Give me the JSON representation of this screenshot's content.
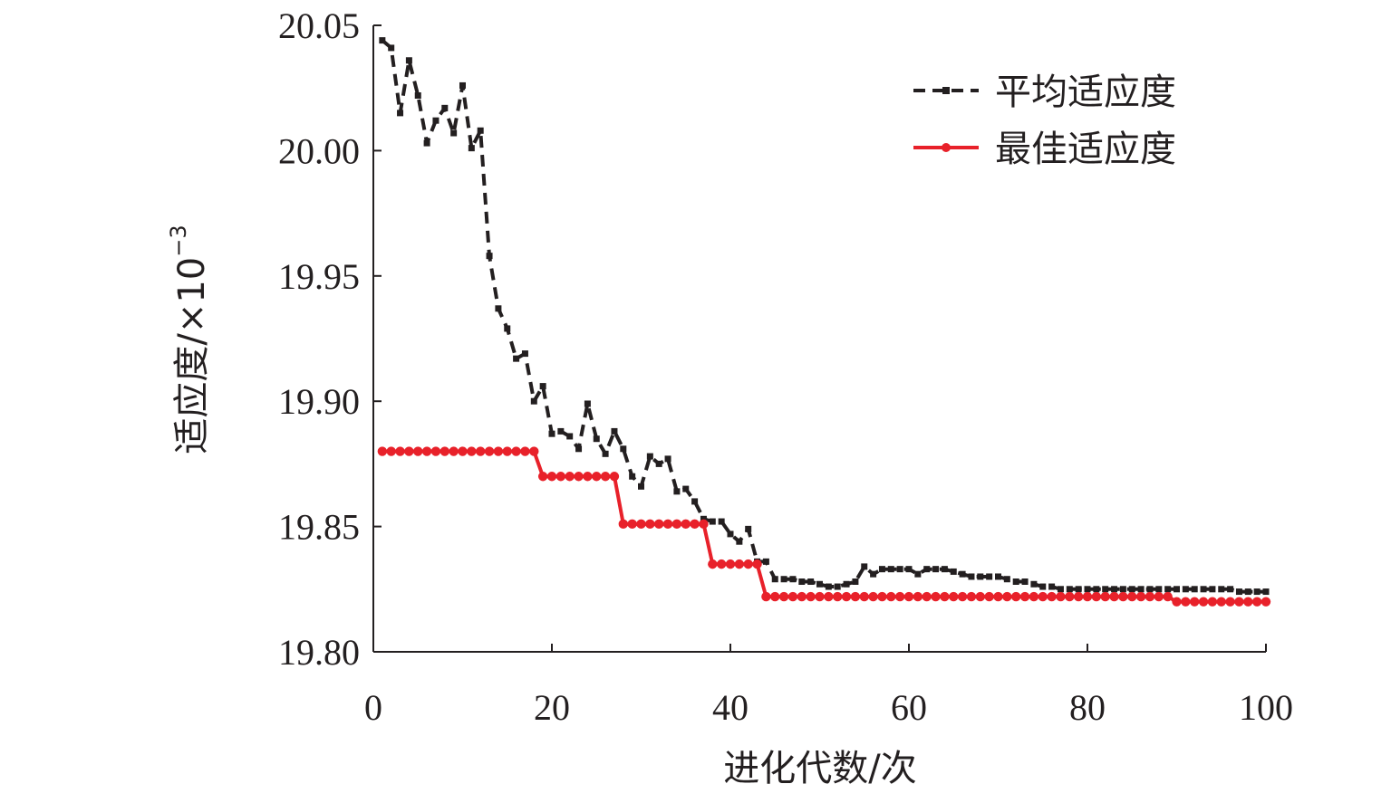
{
  "chart_data": {
    "type": "line",
    "xlabel": "进化代数/次",
    "ylabel_main": "适应度/×10",
    "ylabel_exp": "−3",
    "xlim": [
      0,
      100
    ],
    "ylim": [
      19.8,
      20.05
    ],
    "xticks": [
      "0",
      "20",
      "40",
      "60",
      "80",
      "100"
    ],
    "yticks": [
      "19.80",
      "19.85",
      "19.90",
      "19.95",
      "20.00",
      "20.05"
    ],
    "grid": false,
    "legend_position": "top-right",
    "series": [
      {
        "name": "平均适应度",
        "color": "#231f20",
        "style": "dashed",
        "marker": "square",
        "x": [
          1,
          2,
          3,
          4,
          5,
          6,
          7,
          8,
          9,
          10,
          11,
          12,
          13,
          14,
          15,
          16,
          17,
          18,
          19,
          20,
          21,
          22,
          23,
          24,
          25,
          26,
          27,
          28,
          29,
          30,
          31,
          32,
          33,
          34,
          35,
          36,
          37,
          38,
          39,
          40,
          41,
          42,
          43,
          44,
          45,
          46,
          47,
          48,
          49,
          50,
          51,
          52,
          53,
          54,
          55,
          56,
          57,
          58,
          59,
          60,
          61,
          62,
          63,
          64,
          65,
          66,
          67,
          68,
          69,
          70,
          71,
          72,
          73,
          74,
          75,
          76,
          77,
          78,
          79,
          80,
          81,
          82,
          83,
          84,
          85,
          86,
          87,
          88,
          89,
          90,
          91,
          92,
          93,
          94,
          95,
          96,
          97,
          98,
          99,
          100
        ],
        "y": [
          20.044,
          20.041,
          20.015,
          20.036,
          20.022,
          20.003,
          20.012,
          20.017,
          20.007,
          20.026,
          20.001,
          20.008,
          19.958,
          19.937,
          19.929,
          19.917,
          19.919,
          19.9,
          19.906,
          19.887,
          19.888,
          19.886,
          19.881,
          19.899,
          19.885,
          19.879,
          19.888,
          19.881,
          19.87,
          19.866,
          19.878,
          19.875,
          19.877,
          19.864,
          19.865,
          19.86,
          19.853,
          19.852,
          19.852,
          19.847,
          19.844,
          19.849,
          19.836,
          19.836,
          19.829,
          19.829,
          19.829,
          19.828,
          19.828,
          19.827,
          19.826,
          19.826,
          19.827,
          19.828,
          19.834,
          19.831,
          19.833,
          19.833,
          19.833,
          19.833,
          19.831,
          19.833,
          19.833,
          19.833,
          19.832,
          19.831,
          19.83,
          19.83,
          19.83,
          19.83,
          19.829,
          19.828,
          19.828,
          19.827,
          19.826,
          19.826,
          19.825,
          19.825,
          19.825,
          19.825,
          19.825,
          19.825,
          19.825,
          19.825,
          19.825,
          19.825,
          19.825,
          19.825,
          19.825,
          19.825,
          19.825,
          19.825,
          19.825,
          19.825,
          19.825,
          19.825,
          19.824,
          19.824,
          19.824,
          19.824
        ]
      },
      {
        "name": "最佳适应度",
        "color": "#e8212a",
        "style": "solid",
        "marker": "circle",
        "x": [
          1,
          2,
          3,
          4,
          5,
          6,
          7,
          8,
          9,
          10,
          11,
          12,
          13,
          14,
          15,
          16,
          17,
          18,
          19,
          20,
          21,
          22,
          23,
          24,
          25,
          26,
          27,
          28,
          29,
          30,
          31,
          32,
          33,
          34,
          35,
          36,
          37,
          38,
          39,
          40,
          41,
          42,
          43,
          44,
          45,
          46,
          47,
          48,
          49,
          50,
          51,
          52,
          53,
          54,
          55,
          56,
          57,
          58,
          59,
          60,
          61,
          62,
          63,
          64,
          65,
          66,
          67,
          68,
          69,
          70,
          71,
          72,
          73,
          74,
          75,
          76,
          77,
          78,
          79,
          80,
          81,
          82,
          83,
          84,
          85,
          86,
          87,
          88,
          89,
          90,
          91,
          92,
          93,
          94,
          95,
          96,
          97,
          98,
          99,
          100
        ],
        "y": [
          19.88,
          19.88,
          19.88,
          19.88,
          19.88,
          19.88,
          19.88,
          19.88,
          19.88,
          19.88,
          19.88,
          19.88,
          19.88,
          19.88,
          19.88,
          19.88,
          19.88,
          19.88,
          19.87,
          19.87,
          19.87,
          19.87,
          19.87,
          19.87,
          19.87,
          19.87,
          19.87,
          19.851,
          19.851,
          19.851,
          19.851,
          19.851,
          19.851,
          19.851,
          19.851,
          19.851,
          19.851,
          19.835,
          19.835,
          19.835,
          19.835,
          19.835,
          19.835,
          19.822,
          19.822,
          19.822,
          19.822,
          19.822,
          19.822,
          19.822,
          19.822,
          19.822,
          19.822,
          19.822,
          19.822,
          19.822,
          19.822,
          19.822,
          19.822,
          19.822,
          19.822,
          19.822,
          19.822,
          19.822,
          19.822,
          19.822,
          19.822,
          19.822,
          19.822,
          19.822,
          19.822,
          19.822,
          19.822,
          19.822,
          19.822,
          19.822,
          19.822,
          19.822,
          19.822,
          19.822,
          19.822,
          19.822,
          19.822,
          19.822,
          19.822,
          19.822,
          19.822,
          19.822,
          19.822,
          19.82,
          19.82,
          19.82,
          19.82,
          19.82,
          19.82,
          19.82,
          19.82,
          19.82,
          19.82,
          19.82
        ]
      }
    ]
  }
}
